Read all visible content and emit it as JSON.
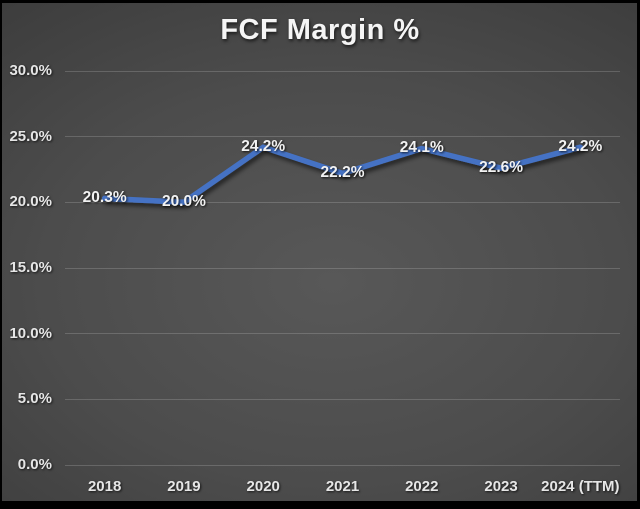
{
  "colors": {
    "line": "#4472C4",
    "background_center": "#585858",
    "background_edge": "#272727",
    "gridline_rgba": "rgba(255,255,255,0.17)",
    "label_text": "#f2f2f2",
    "tick_text": "#e6e6e6",
    "title_text": "#f5f5f5",
    "frame_border": "#000000"
  },
  "chart_data": {
    "type": "line",
    "title": "FCF Margin %",
    "categories": [
      "2018",
      "2019",
      "2020",
      "2021",
      "2022",
      "2023",
      "2024 (TTM)"
    ],
    "values": [
      20.3,
      20.0,
      24.2,
      22.2,
      24.1,
      22.6,
      24.2
    ],
    "point_labels": [
      "20.3%",
      "20.0%",
      "24.2%",
      "22.2%",
      "24.1%",
      "22.6%",
      "24.2%"
    ],
    "xlabel": "",
    "ylabel": "",
    "ylim": [
      0,
      30
    ],
    "ytick_step": 5,
    "ytick_labels": [
      "0.0%",
      "5.0%",
      "10.0%",
      "15.0%",
      "20.0%",
      "25.0%",
      "30.0%"
    ],
    "grid": true,
    "legend_position": "none",
    "data_label_position": "center"
  }
}
